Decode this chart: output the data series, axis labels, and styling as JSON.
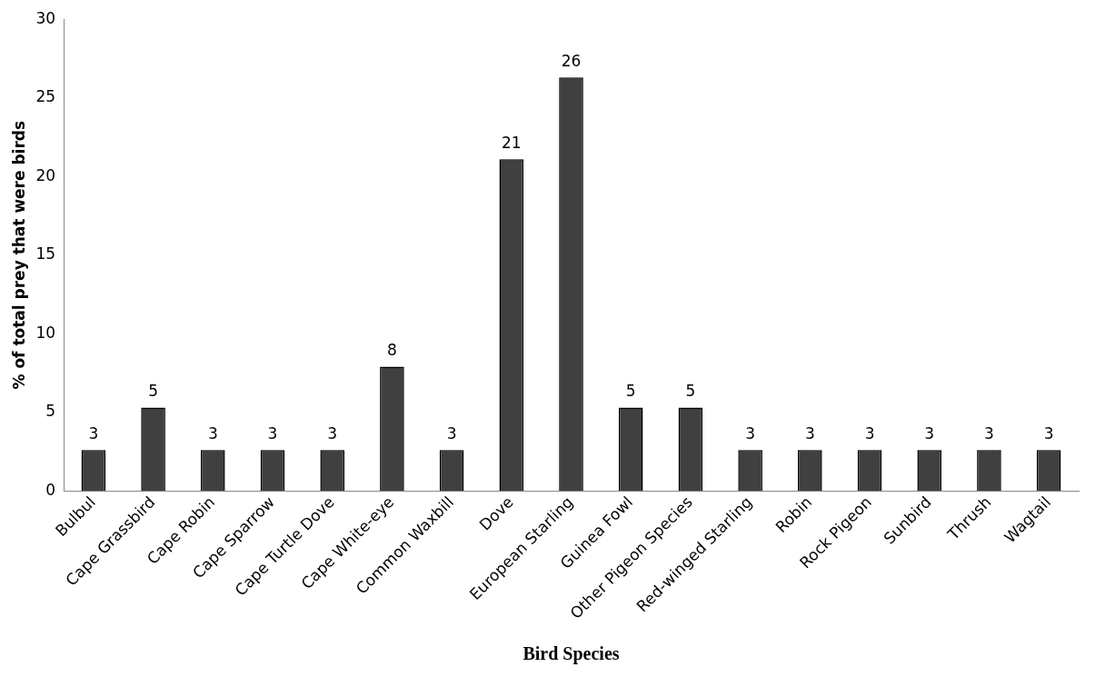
{
  "chart_data": {
    "type": "bar",
    "xlabel": "Bird Species",
    "ylabel": "% of total prey that were birds",
    "categories": [
      "Bulbul",
      "Cape Grassbird",
      "Cape Robin",
      "Cape Sparrow",
      "Cape Turtle Dove",
      "Cape White-eye",
      "Common Waxbill",
      "Dove",
      "European Starling",
      "Guinea Fowl",
      "Other Pigeon Species",
      "Red-winged Starling",
      "Robin",
      "Rock Pigeon",
      "Sunbird",
      "Thrush",
      "Wagtail"
    ],
    "values": [
      2.6,
      5.3,
      2.6,
      2.6,
      2.6,
      7.9,
      2.6,
      21.1,
      26.3,
      5.3,
      5.3,
      2.6,
      2.6,
      2.6,
      2.6,
      2.6,
      2.6
    ],
    "value_labels": [
      "3",
      "5",
      "3",
      "3",
      "3",
      "8",
      "3",
      "21",
      "26",
      "5",
      "5",
      "3",
      "3",
      "3",
      "3",
      "3",
      "3"
    ],
    "color": "#404040",
    "ylim": [
      0,
      30
    ],
    "yticks": [
      0,
      5,
      10,
      15,
      20,
      25,
      30
    ],
    "grid": false,
    "legend": false
  }
}
